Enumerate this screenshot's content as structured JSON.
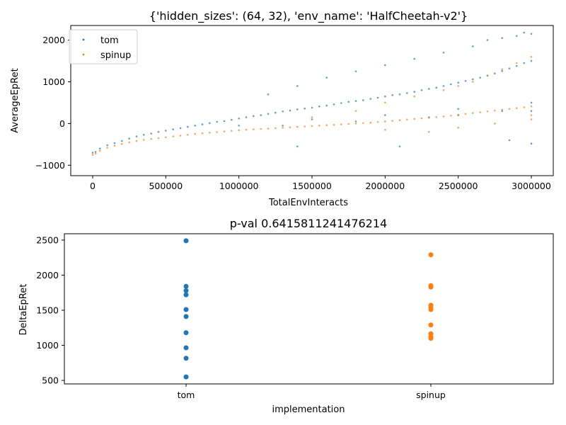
{
  "chart_data": [
    {
      "type": "scatter",
      "title": "{'hidden_sizes': (64, 32), 'env_name': 'HalfCheetah-v2'}",
      "xlabel": "TotalEnvInteracts",
      "ylabel": "AverageEpRet",
      "xlim": [
        -150000,
        3150000
      ],
      "ylim": [
        -1250,
        2350
      ],
      "xticks": [
        0,
        500000,
        1000000,
        1500000,
        2000000,
        2500000,
        3000000
      ],
      "yticks": [
        -1000,
        0,
        1000,
        2000
      ],
      "legend": "upper-left",
      "grid": false,
      "series": [
        {
          "name": "tom",
          "color": "#1f77b4",
          "points": [
            [
              0,
              -700
            ],
            [
              20000,
              -680
            ],
            [
              50000,
              -600
            ],
            [
              100000,
              -520
            ],
            [
              150000,
              -470
            ],
            [
              200000,
              -420
            ],
            [
              250000,
              -360
            ],
            [
              300000,
              -310
            ],
            [
              350000,
              -270
            ],
            [
              400000,
              -240
            ],
            [
              450000,
              -200
            ],
            [
              500000,
              -170
            ],
            [
              550000,
              -140
            ],
            [
              600000,
              -110
            ],
            [
              650000,
              -80
            ],
            [
              700000,
              -50
            ],
            [
              750000,
              -20
            ],
            [
              800000,
              10
            ],
            [
              850000,
              40
            ],
            [
              900000,
              60
            ],
            [
              950000,
              90
            ],
            [
              1000000,
              120
            ],
            [
              1050000,
              150
            ],
            [
              1100000,
              180
            ],
            [
              1150000,
              200
            ],
            [
              1200000,
              230
            ],
            [
              1250000,
              260
            ],
            [
              1300000,
              290
            ],
            [
              1350000,
              310
            ],
            [
              1400000,
              340
            ],
            [
              1450000,
              360
            ],
            [
              1500000,
              380
            ],
            [
              1550000,
              410
            ],
            [
              1600000,
              430
            ],
            [
              1650000,
              460
            ],
            [
              1700000,
              490
            ],
            [
              1750000,
              520
            ],
            [
              1800000,
              540
            ],
            [
              1850000,
              560
            ],
            [
              1900000,
              590
            ],
            [
              1950000,
              620
            ],
            [
              2000000,
              650
            ],
            [
              2050000,
              680
            ],
            [
              2100000,
              700
            ],
            [
              2150000,
              730
            ],
            [
              2200000,
              760
            ],
            [
              2250000,
              800
            ],
            [
              2300000,
              830
            ],
            [
              2350000,
              860
            ],
            [
              2400000,
              900
            ],
            [
              2450000,
              940
            ],
            [
              2500000,
              980
            ],
            [
              2550000,
              1020
            ],
            [
              2600000,
              1060
            ],
            [
              2650000,
              1100
            ],
            [
              2700000,
              1150
            ],
            [
              2750000,
              1200
            ],
            [
              2800000,
              1260
            ],
            [
              2850000,
              1320
            ],
            [
              2900000,
              1380
            ],
            [
              2950000,
              1450
            ],
            [
              3000000,
              1500
            ],
            [
              1200000,
              700
            ],
            [
              1400000,
              900
            ],
            [
              1600000,
              1100
            ],
            [
              1800000,
              1250
            ],
            [
              2000000,
              1400
            ],
            [
              2200000,
              1550
            ],
            [
              2400000,
              1700
            ],
            [
              2600000,
              1850
            ],
            [
              2700000,
              2000
            ],
            [
              2800000,
              2050
            ],
            [
              2900000,
              2100
            ],
            [
              2950000,
              2180
            ],
            [
              3000000,
              2150
            ],
            [
              1000000,
              -50
            ],
            [
              1500000,
              100
            ],
            [
              2000000,
              200
            ],
            [
              2500000,
              350
            ],
            [
              3000000,
              500
            ],
            [
              2500000,
              200
            ],
            [
              2800000,
              300
            ],
            [
              3000000,
              300
            ],
            [
              1300000,
              -50
            ],
            [
              1800000,
              50
            ],
            [
              2300000,
              150
            ],
            [
              1400000,
              -550
            ],
            [
              2100000,
              -550
            ],
            [
              2850000,
              -400
            ],
            [
              3000000,
              -480
            ]
          ]
        },
        {
          "name": "spinup",
          "color": "#ff7f0e",
          "points": [
            [
              0,
              -750
            ],
            [
              20000,
              -720
            ],
            [
              50000,
              -650
            ],
            [
              100000,
              -580
            ],
            [
              150000,
              -530
            ],
            [
              200000,
              -490
            ],
            [
              250000,
              -450
            ],
            [
              300000,
              -420
            ],
            [
              350000,
              -390
            ],
            [
              400000,
              -370
            ],
            [
              450000,
              -350
            ],
            [
              500000,
              -330
            ],
            [
              550000,
              -310
            ],
            [
              600000,
              -290
            ],
            [
              650000,
              -270
            ],
            [
              700000,
              -250
            ],
            [
              750000,
              -235
            ],
            [
              800000,
              -220
            ],
            [
              850000,
              -205
            ],
            [
              900000,
              -190
            ],
            [
              950000,
              -175
            ],
            [
              1000000,
              -160
            ],
            [
              1050000,
              -150
            ],
            [
              1100000,
              -140
            ],
            [
              1150000,
              -130
            ],
            [
              1200000,
              -120
            ],
            [
              1250000,
              -110
            ],
            [
              1300000,
              -100
            ],
            [
              1350000,
              -90
            ],
            [
              1400000,
              -80
            ],
            [
              1450000,
              -70
            ],
            [
              1500000,
              -60
            ],
            [
              1550000,
              -50
            ],
            [
              1600000,
              -40
            ],
            [
              1650000,
              -30
            ],
            [
              1700000,
              -20
            ],
            [
              1750000,
              -10
            ],
            [
              1800000,
              0
            ],
            [
              1850000,
              10
            ],
            [
              1900000,
              20
            ],
            [
              1950000,
              35
            ],
            [
              2000000,
              50
            ],
            [
              2050000,
              65
            ],
            [
              2100000,
              80
            ],
            [
              2150000,
              95
            ],
            [
              2200000,
              110
            ],
            [
              2250000,
              125
            ],
            [
              2300000,
              140
            ],
            [
              2350000,
              155
            ],
            [
              2400000,
              170
            ],
            [
              2450000,
              190
            ],
            [
              2500000,
              210
            ],
            [
              2550000,
              230
            ],
            [
              2600000,
              250
            ],
            [
              2650000,
              270
            ],
            [
              2700000,
              290
            ],
            [
              2750000,
              310
            ],
            [
              2800000,
              330
            ],
            [
              2850000,
              350
            ],
            [
              2900000,
              370
            ],
            [
              2950000,
              390
            ],
            [
              3000000,
              410
            ],
            [
              1500000,
              150
            ],
            [
              1800000,
              300
            ],
            [
              2000000,
              500
            ],
            [
              2200000,
              650
            ],
            [
              2400000,
              800
            ],
            [
              2500000,
              900
            ],
            [
              2600000,
              1000
            ],
            [
              2700000,
              1150
            ],
            [
              2800000,
              1300
            ],
            [
              2900000,
              1450
            ],
            [
              3000000,
              1600
            ],
            [
              2000000,
              -150
            ],
            [
              2500000,
              -100
            ],
            [
              3000000,
              100
            ],
            [
              2300000,
              -200
            ],
            [
              2750000,
              0
            ],
            [
              3000000,
              200
            ]
          ]
        }
      ]
    },
    {
      "type": "scatter",
      "title": "p-val 0.6415811241476214",
      "xlabel": "implementation",
      "ylabel": "DeltaEpRet",
      "categories": [
        "tom",
        "spinup"
      ],
      "ylim": [
        450,
        2590
      ],
      "yticks": [
        500,
        1000,
        1500,
        2000,
        2500
      ],
      "grid": false,
      "series": [
        {
          "category": "tom",
          "color": "#1f77b4",
          "values": [
            2490,
            1840,
            1780,
            1720,
            1510,
            1410,
            1180,
            965,
            815,
            550
          ]
        },
        {
          "category": "spinup",
          "color": "#ff7f0e",
          "values": [
            2290,
            1850,
            1830,
            1570,
            1540,
            1510,
            1290,
            1165,
            1120,
            1100
          ]
        }
      ]
    }
  ]
}
